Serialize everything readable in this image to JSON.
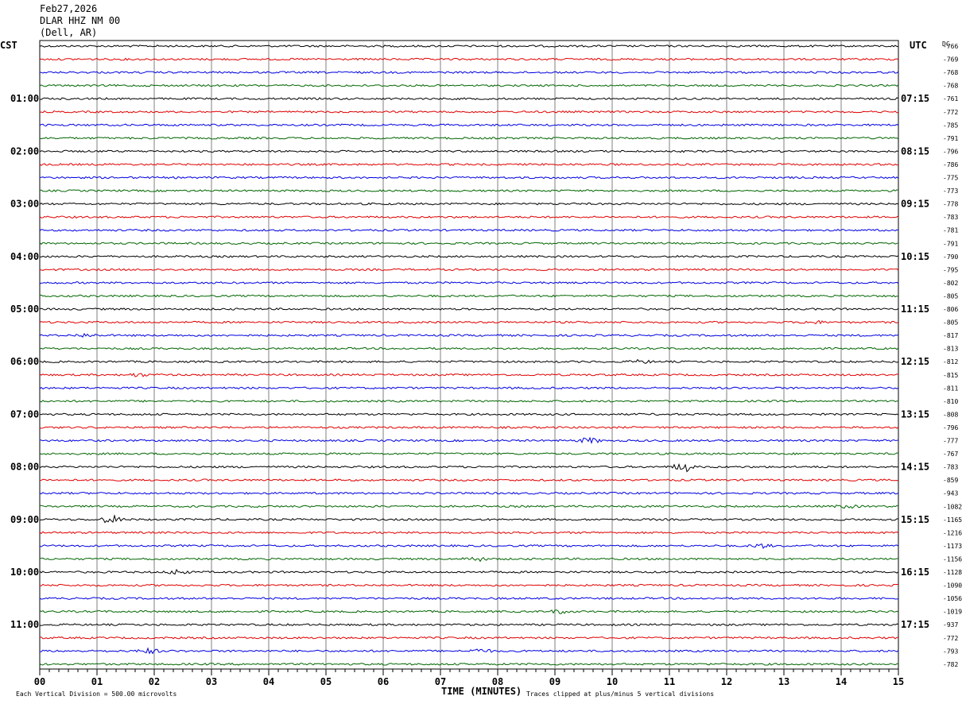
{
  "header": {
    "date": "Feb27,2026",
    "station": "DLAR HHZ NM 00",
    "location": "(Dell, AR)"
  },
  "left_tz": "CST",
  "right_tz": "UTC",
  "dc_label": "DC",
  "footer": {
    "time_label": "TIME (MINUTES)",
    "division_note": "Each Vertical Division =  500.00 microvolts",
    "clip_note": "Traces clipped at plus/minus 5 vertical divisions"
  },
  "colors": {
    "line1": "#000000",
    "line2": "#e00000",
    "line3": "#0000e0",
    "line4": "#006600",
    "grid": "#7f7f7f"
  },
  "chart_data": {
    "type": "line",
    "xlabel": "TIME (MINUTES)",
    "xlim": [
      0,
      15
    ],
    "x_ticks": [
      "00",
      "01",
      "02",
      "03",
      "04",
      "05",
      "06",
      "07",
      "08",
      "09",
      "10",
      "11",
      "12",
      "13",
      "14",
      "15"
    ],
    "rows": 48,
    "row_minutes": 15,
    "left_hour_labels": [
      {
        "row": 4,
        "text": "01:00"
      },
      {
        "row": 8,
        "text": "02:00"
      },
      {
        "row": 12,
        "text": "03:00"
      },
      {
        "row": 16,
        "text": "04:00"
      },
      {
        "row": 20,
        "text": "05:00"
      },
      {
        "row": 24,
        "text": "06:00"
      },
      {
        "row": 28,
        "text": "07:00"
      },
      {
        "row": 32,
        "text": "08:00"
      },
      {
        "row": 36,
        "text": "09:00"
      },
      {
        "row": 40,
        "text": "10:00"
      },
      {
        "row": 44,
        "text": "11:00"
      }
    ],
    "right_hour_labels": [
      {
        "row": 4,
        "text": "07:15"
      },
      {
        "row": 8,
        "text": "08:15"
      },
      {
        "row": 12,
        "text": "09:15"
      },
      {
        "row": 16,
        "text": "10:15"
      },
      {
        "row": 20,
        "text": "11:15"
      },
      {
        "row": 24,
        "text": "12:15"
      },
      {
        "row": 28,
        "text": "13:15"
      },
      {
        "row": 32,
        "text": "14:15"
      },
      {
        "row": 36,
        "text": "15:15"
      },
      {
        "row": 40,
        "text": "16:15"
      },
      {
        "row": 44,
        "text": "17:15"
      }
    ],
    "dc_offsets": [
      "-766",
      "-769",
      "-768",
      "-768",
      "-761",
      "-772",
      "-785",
      "-791",
      "-796",
      "-786",
      "-775",
      "-773",
      "-778",
      "-783",
      "-781",
      "-791",
      "-790",
      "-795",
      "-802",
      "-805",
      "-806",
      "-805",
      "-817",
      "-813",
      "-812",
      "-815",
      "-811",
      "-810",
      "-808",
      "-796",
      "-777",
      "-767",
      "-783",
      "-859",
      "-943",
      "-1082",
      "-1165",
      "-1216",
      "-1173",
      "-1156",
      "-1128",
      "-1090",
      "-1056",
      "-1019",
      "-937",
      "-772",
      "-793",
      "-782"
    ],
    "events": [
      {
        "row": 21,
        "minute": 13.5,
        "amp": 2.0
      },
      {
        "row": 22,
        "minute": 0.8,
        "amp": 2.0
      },
      {
        "row": 24,
        "minute": 10.5,
        "amp": 2.0
      },
      {
        "row": 25,
        "minute": 1.7,
        "amp": 2.0
      },
      {
        "row": 30,
        "minute": 9.6,
        "amp": 3.5
      },
      {
        "row": 32,
        "minute": 11.25,
        "amp": 6.0
      },
      {
        "row": 35,
        "minute": 14.1,
        "amp": 2.0
      },
      {
        "row": 36,
        "minute": 1.25,
        "amp": 5.0
      },
      {
        "row": 38,
        "minute": 12.6,
        "amp": 2.5
      },
      {
        "row": 39,
        "minute": 7.6,
        "amp": 3.0
      },
      {
        "row": 40,
        "minute": 2.4,
        "amp": 3.0
      },
      {
        "row": 43,
        "minute": 9.1,
        "amp": 2.0
      },
      {
        "row": 46,
        "minute": 1.9,
        "amp": 3.0
      },
      {
        "row": 46,
        "minute": 7.7,
        "amp": 2.5
      }
    ]
  }
}
